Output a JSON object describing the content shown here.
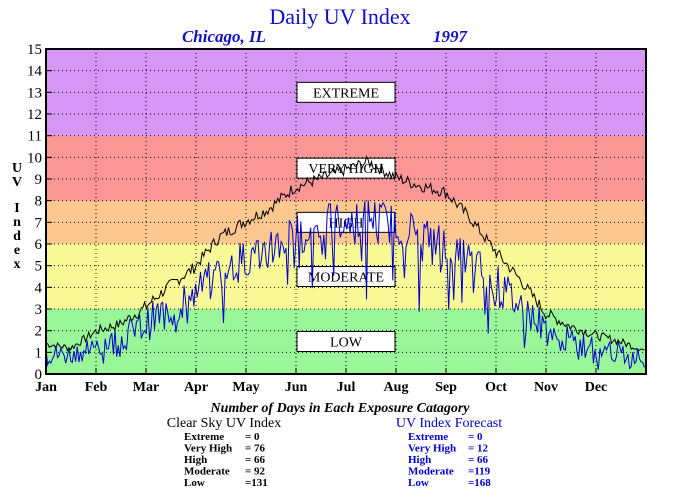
{
  "chart_data": {
    "type": "line",
    "title": "Daily UV Index",
    "subtitle_location": "Chicago, IL",
    "subtitle_year": "1997",
    "ylabel": "UV Index",
    "ylim": [
      0,
      15
    ],
    "yticks": [
      0,
      1,
      2,
      3,
      4,
      5,
      6,
      7,
      8,
      9,
      10,
      11,
      12,
      13,
      14,
      15
    ],
    "grid": true,
    "months": [
      "Jan",
      "Feb",
      "Mar",
      "Apr",
      "May",
      "Jun",
      "Jul",
      "Aug",
      "Sep",
      "Oct",
      "Nov",
      "Dec"
    ],
    "zones": [
      {
        "label": "LOW",
        "from": 0,
        "to": 3,
        "color": "#99f799"
      },
      {
        "label": "MODERATE",
        "from": 3,
        "to": 6,
        "color": "#f8f896"
      },
      {
        "label": "HIGH",
        "from": 6,
        "to": 8,
        "color": "#fcc88f"
      },
      {
        "label": "VERY HIGH",
        "from": 8,
        "to": 11,
        "color": "#fa9696"
      },
      {
        "label": "EXTREME",
        "from": 11,
        "to": 15,
        "color": "#d696f6"
      }
    ],
    "series": [
      {
        "color": "#000000",
        "x_day": [
          1,
          16,
          32,
          46,
          60,
          75,
          91,
          106,
          121,
          136,
          152,
          167,
          182,
          197,
          213,
          228,
          244,
          259,
          274,
          289,
          305,
          320,
          335,
          350,
          365
        ],
        "values": [
          1.4,
          1.2,
          2.0,
          2.3,
          3.0,
          4.0,
          4.9,
          6.3,
          7.0,
          7.6,
          8.6,
          9.0,
          9.4,
          9.8,
          9.1,
          8.7,
          8.4,
          7.2,
          5.7,
          4.4,
          2.8,
          2.2,
          1.8,
          1.5,
          1.1
        ]
      },
      {
        "color": "#0000cc",
        "x_day": [
          1,
          16,
          32,
          46,
          60,
          75,
          91,
          106,
          121,
          136,
          152,
          167,
          182,
          197,
          213,
          228,
          244,
          259,
          274,
          289,
          305,
          320,
          335,
          350,
          365
        ],
        "values": [
          0.9,
          0.9,
          1.4,
          1.6,
          2.2,
          3.0,
          3.7,
          4.6,
          5.3,
          5.8,
          6.4,
          6.8,
          7.1,
          7.3,
          6.9,
          6.5,
          6.0,
          5.2,
          4.2,
          3.2,
          2.1,
          1.5,
          1.2,
          1.0,
          0.7
        ]
      }
    ],
    "caption": "Number of Days in Each Exposure Catagory",
    "clear_sky": {
      "title": "Clear Sky UV Index",
      "rows": [
        {
          "label": "Extreme",
          "value": "=    0"
        },
        {
          "label": "Very High",
          "value": "=  76"
        },
        {
          "label": "High",
          "value": "=  66"
        },
        {
          "label": "Moderate",
          "value": "=  92"
        },
        {
          "label": "Low",
          "value": "=131"
        }
      ]
    },
    "forecast": {
      "title": "UV Index Forecast",
      "rows": [
        {
          "label": "Extreme",
          "value": "=    0"
        },
        {
          "label": "Very High",
          "value": "=  12"
        },
        {
          "label": "High",
          "value": "=  66"
        },
        {
          "label": "Moderate",
          "value": "=119"
        },
        {
          "label": "Low",
          "value": "=168"
        }
      ]
    }
  }
}
